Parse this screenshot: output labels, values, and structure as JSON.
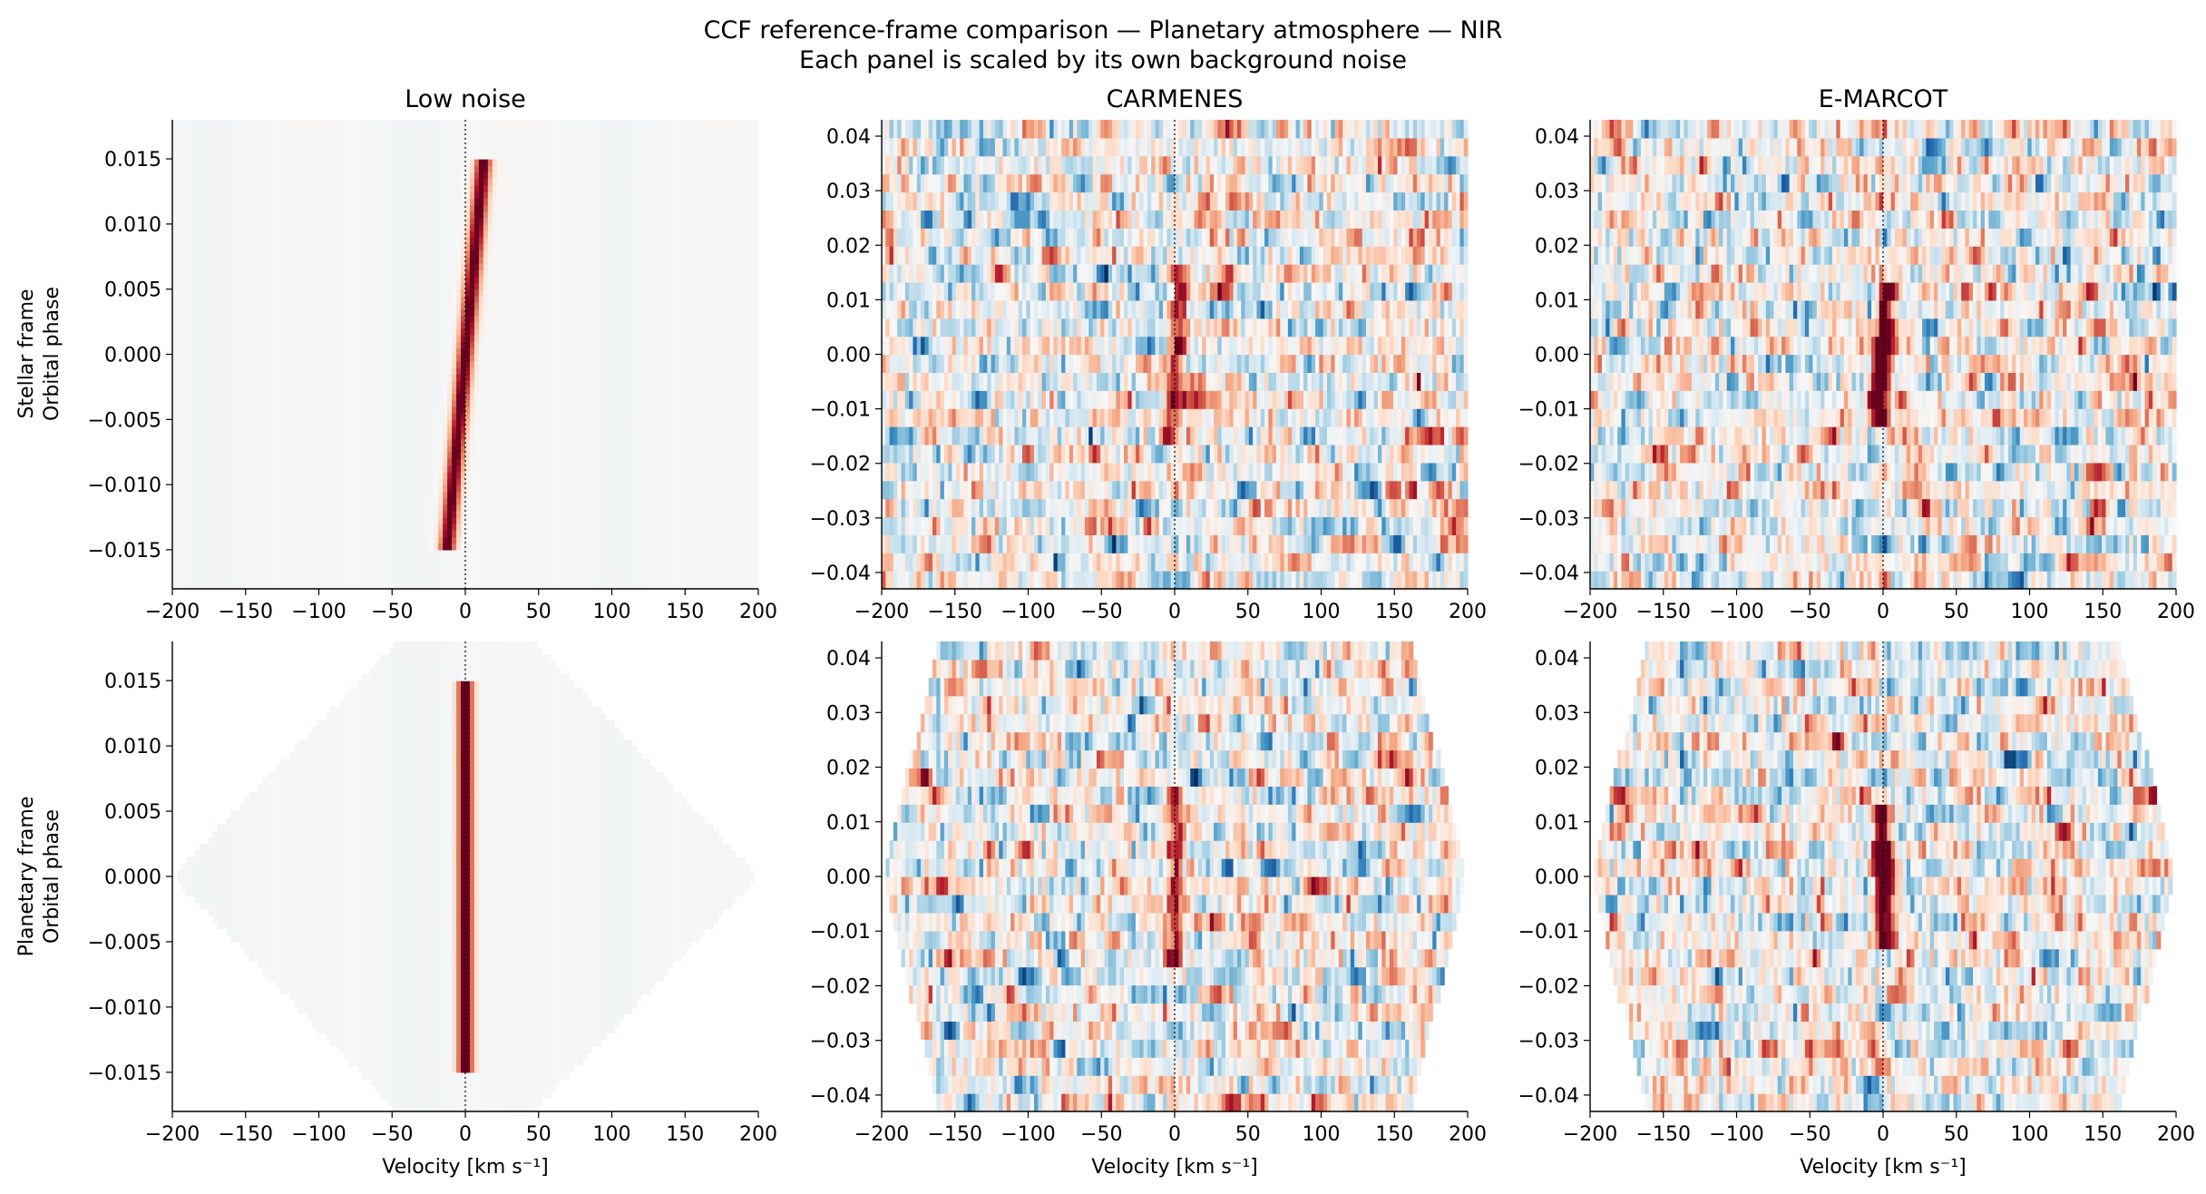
{
  "figure": {
    "title_line1": "CCF reference-frame comparison — Planetary atmosphere — NIR",
    "title_line2": "Each panel is scaled by its own background noise"
  },
  "row_labels": [
    [
      "Stellar frame",
      "Orbital phase"
    ],
    [
      "Planetary frame",
      "Orbital phase"
    ]
  ],
  "colors": {
    "cmap_negative_strong": "#053061",
    "cmap_positive_strong": "#67001f",
    "cmap_zero": "#f7f7f7",
    "zero_line": "#000000"
  },
  "chart_data": [
    {
      "type": "heatmap",
      "title": "Low noise",
      "frame": "stellar",
      "noise": "low",
      "xlabel": "",
      "ylabel": "",
      "xlim": [
        -200,
        200
      ],
      "ylim": [
        -0.018,
        0.018
      ],
      "xticks": [
        -200,
        -150,
        -100,
        -50,
        0,
        50,
        100,
        150,
        200
      ],
      "yticks": [
        -0.015,
        -0.01,
        -0.005,
        0.0,
        0.005,
        0.01,
        0.015
      ],
      "ytick_labels": [
        "−0.015",
        "−0.010",
        "−0.005",
        "0.000",
        "0.005",
        "0.010",
        "0.015"
      ],
      "signal_velocity_at_ymin": -15,
      "signal_velocity_at_ymax": 15,
      "signal_phase_range": [
        -0.015,
        0.015
      ],
      "cmap": "RdBu_r"
    },
    {
      "type": "heatmap",
      "title": "CARMENES",
      "frame": "stellar",
      "noise": "high",
      "xlabel": "",
      "ylabel": "",
      "xlim": [
        -200,
        200
      ],
      "ylim": [
        -0.043,
        0.043
      ],
      "xticks": [
        -200,
        -150,
        -100,
        -50,
        0,
        50,
        100,
        150,
        200
      ],
      "yticks": [
        -0.04,
        -0.03,
        -0.02,
        -0.01,
        0.0,
        0.01,
        0.02,
        0.03,
        0.04
      ],
      "ytick_labels": [
        "−0.04",
        "−0.03",
        "−0.02",
        "−0.01",
        "0.00",
        "0.01",
        "0.02",
        "0.03",
        "0.04"
      ],
      "signal_velocity_at_ymin": -8,
      "signal_velocity_at_ymax": 8,
      "signal_phase_range": [
        -0.015,
        0.015
      ],
      "cmap": "RdBu_r"
    },
    {
      "type": "heatmap",
      "title": "E-MARCOT",
      "frame": "stellar",
      "noise": "medium",
      "xlabel": "",
      "ylabel": "",
      "xlim": [
        -200,
        200
      ],
      "ylim": [
        -0.043,
        0.043
      ],
      "xticks": [
        -200,
        -150,
        -100,
        -50,
        0,
        50,
        100,
        150,
        200
      ],
      "yticks": [
        -0.04,
        -0.03,
        -0.02,
        -0.01,
        0.0,
        0.01,
        0.02,
        0.03,
        0.04
      ],
      "ytick_labels": [
        "−0.04",
        "−0.03",
        "−0.02",
        "−0.01",
        "0.00",
        "0.01",
        "0.02",
        "0.03",
        "0.04"
      ],
      "signal_velocity_at_ymin": -12,
      "signal_velocity_at_ymax": 12,
      "signal_phase_range": [
        -0.012,
        0.012
      ],
      "cmap": "RdBu_r"
    },
    {
      "type": "heatmap",
      "title": "",
      "frame": "planetary",
      "noise": "low",
      "xlabel": "Velocity [km s⁻¹]",
      "ylabel": "",
      "xlim": [
        -200,
        200
      ],
      "ylim": [
        -0.018,
        0.018
      ],
      "xticks": [
        -200,
        -150,
        -100,
        -50,
        0,
        50,
        100,
        150,
        200
      ],
      "yticks": [
        -0.015,
        -0.01,
        -0.005,
        0.0,
        0.005,
        0.01,
        0.015
      ],
      "ytick_labels": [
        "−0.015",
        "−0.010",
        "−0.005",
        "0.000",
        "0.005",
        "0.010",
        "0.015"
      ],
      "signal_velocity_at_ymin": 0,
      "signal_velocity_at_ymax": 0,
      "signal_phase_range": [
        -0.015,
        0.015
      ],
      "cmap": "RdBu_r"
    },
    {
      "type": "heatmap",
      "title": "",
      "frame": "planetary",
      "noise": "high",
      "xlabel": "Velocity [km s⁻¹]",
      "ylabel": "",
      "xlim": [
        -200,
        200
      ],
      "ylim": [
        -0.043,
        0.043
      ],
      "xticks": [
        -200,
        -150,
        -100,
        -50,
        0,
        50,
        100,
        150,
        200
      ],
      "yticks": [
        -0.04,
        -0.03,
        -0.02,
        -0.01,
        0.0,
        0.01,
        0.02,
        0.03,
        0.04
      ],
      "ytick_labels": [
        "−0.04",
        "−0.03",
        "−0.02",
        "−0.01",
        "0.00",
        "0.01",
        "0.02",
        "0.03",
        "0.04"
      ],
      "signal_velocity_at_ymin": 0,
      "signal_velocity_at_ymax": 0,
      "signal_phase_range": [
        -0.015,
        0.015
      ],
      "cmap": "RdBu_r"
    },
    {
      "type": "heatmap",
      "title": "",
      "frame": "planetary",
      "noise": "medium",
      "xlabel": "Velocity [km s⁻¹]",
      "ylabel": "",
      "xlim": [
        -200,
        200
      ],
      "ylim": [
        -0.043,
        0.043
      ],
      "xticks": [
        -200,
        -150,
        -100,
        -50,
        0,
        50,
        100,
        150,
        200
      ],
      "yticks": [
        -0.04,
        -0.03,
        -0.02,
        -0.01,
        0.0,
        0.01,
        0.02,
        0.03,
        0.04
      ],
      "ytick_labels": [
        "−0.04",
        "−0.03",
        "−0.02",
        "−0.01",
        "0.00",
        "0.01",
        "0.02",
        "0.03",
        "0.04"
      ],
      "signal_velocity_at_ymin": 0,
      "signal_velocity_at_ymax": 0,
      "signal_phase_range": [
        -0.012,
        0.012
      ],
      "cmap": "RdBu_r"
    }
  ]
}
